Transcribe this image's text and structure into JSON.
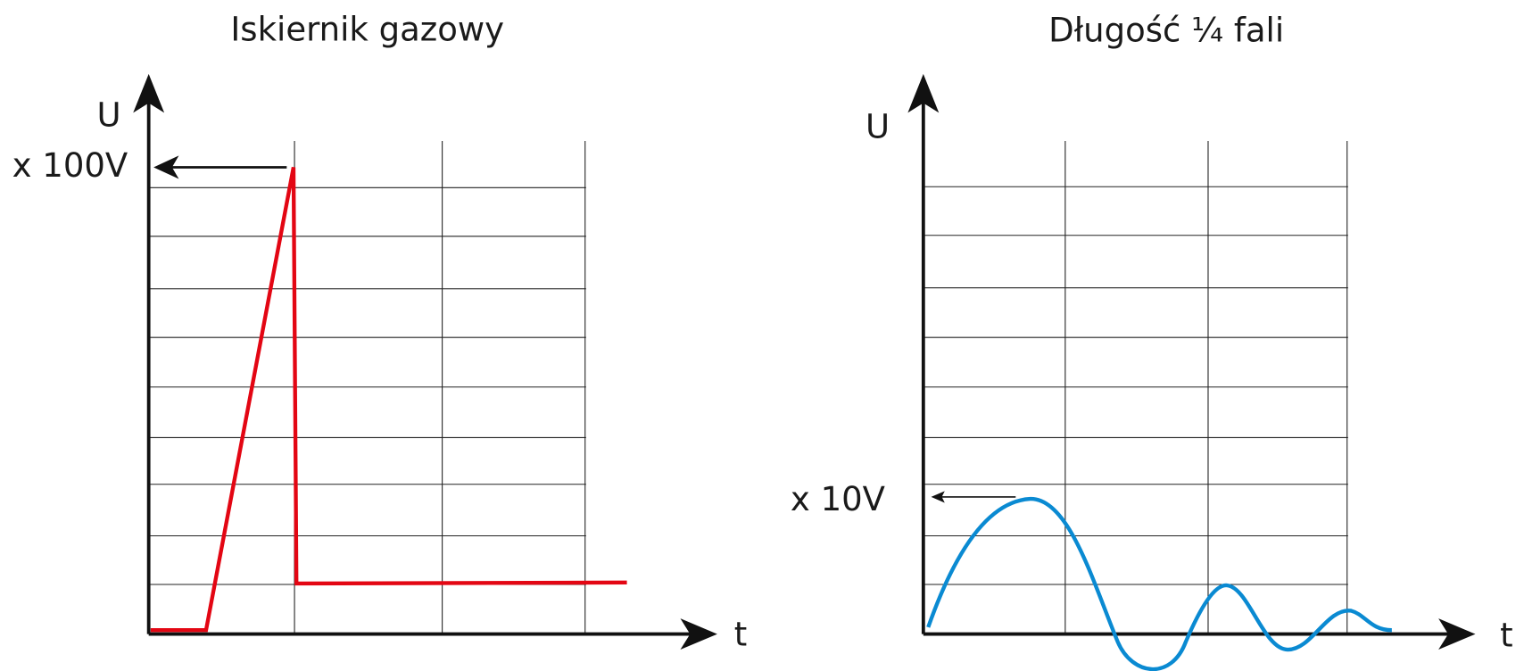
{
  "panels": [
    {
      "title": "Iskiernik gazowy",
      "y_label": "U",
      "scale_label": "x 100V",
      "x_label": "t"
    },
    {
      "title": "Długość ¼ fali",
      "y_label": "U",
      "scale_label": "x 10V",
      "x_label": "t"
    }
  ]
}
